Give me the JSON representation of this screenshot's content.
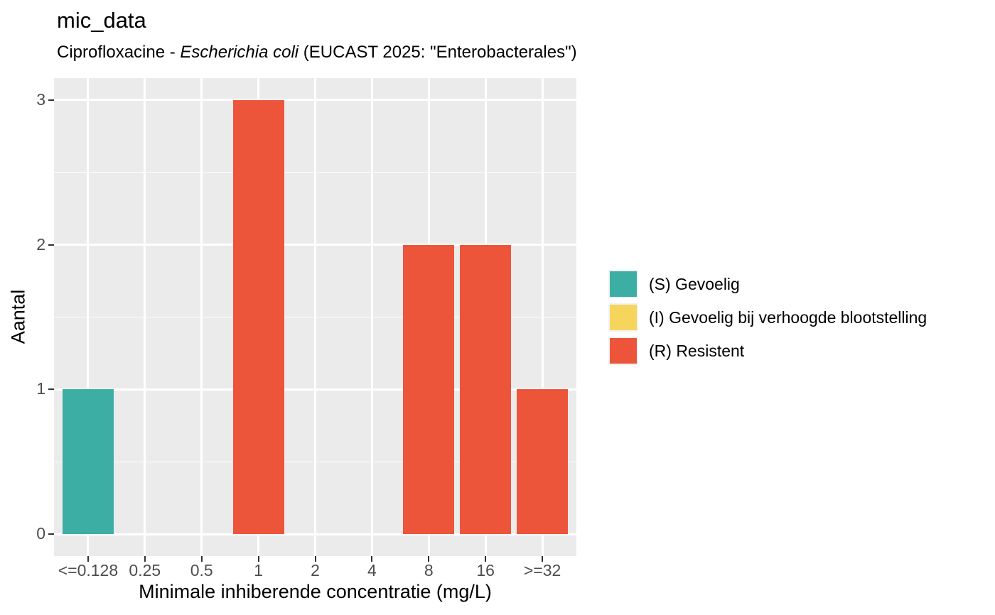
{
  "chart_data": {
    "type": "bar",
    "stacked": true,
    "title": "mic_data",
    "subtitle": "Ciprofloxacine - Escherichia coli (EUCAST 2025: \"Enterobacterales\")",
    "subtitle_parts": {
      "prefix": "Ciprofloxacine - ",
      "italic": "Escherichia coli",
      "suffix": " (EUCAST 2025: \"Enterobacterales\")"
    },
    "xlabel": "Minimale inhiberende concentratie (mg/L)",
    "ylabel": "Aantal",
    "categories": [
      "<=0.128",
      "0.25",
      "0.5",
      "1",
      "2",
      "4",
      "8",
      "16",
      ">=32"
    ],
    "series": [
      {
        "name": "(S) Gevoelig",
        "color": "#3CAEA3",
        "values": [
          1,
          0,
          0,
          0,
          0,
          0,
          0,
          0,
          0
        ]
      },
      {
        "name": "(I) Gevoelig bij verhoogde blootstelling",
        "color": "#F6D55C",
        "values": [
          0,
          0,
          0,
          0,
          0,
          0,
          0,
          0,
          0
        ]
      },
      {
        "name": "(R) Resistent",
        "color": "#ED553B",
        "values": [
          0,
          0,
          0,
          3,
          0,
          0,
          2,
          2,
          1
        ]
      }
    ],
    "yticks": [
      0,
      1,
      2,
      3
    ],
    "minor_yticks": [
      0.5,
      1.5,
      2.5
    ],
    "ylim": [
      -0.15,
      3.15
    ],
    "bar_width": 0.9,
    "x_expand": 0.6,
    "grid": true,
    "legend_position": "right",
    "panel_bg": "#EBEBEB",
    "grid_color": "#FFFFFF",
    "tick_label_color": "#4D4D4D",
    "tick_mark_color": "#333333",
    "legend_key_bg": "#F2F2F2"
  }
}
